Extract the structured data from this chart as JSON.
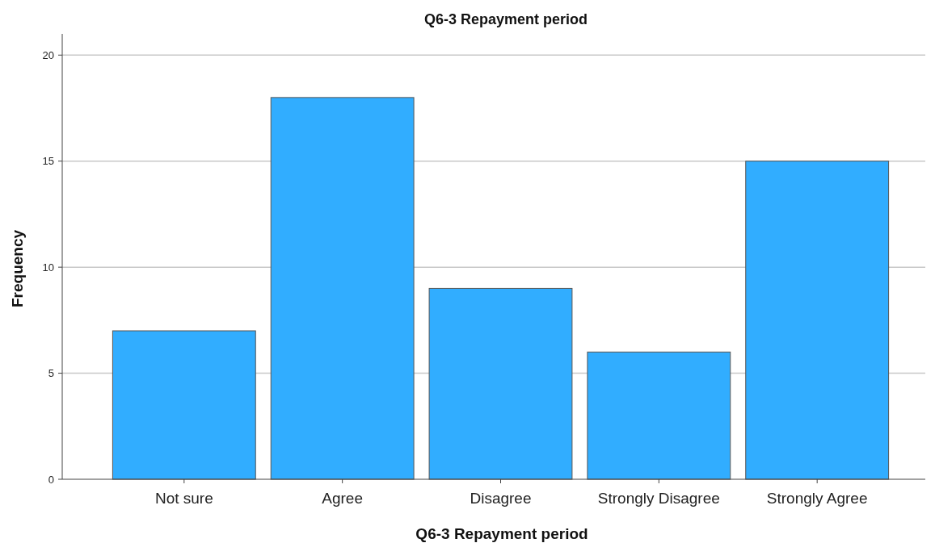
{
  "chart_data": {
    "type": "bar",
    "title": "Q6-3 Repayment period",
    "xlabel": "Q6-3 Repayment period",
    "ylabel": "Frequency",
    "categories": [
      "Not sure",
      "Agree",
      "Disagree",
      "Strongly Disagree",
      "Strongly Agree"
    ],
    "values": [
      7,
      18,
      9,
      6,
      15
    ],
    "color": "#31adff",
    "ylim": [
      0,
      21
    ],
    "yticks": [
      0,
      5,
      10,
      15,
      20
    ],
    "grid": "y"
  }
}
